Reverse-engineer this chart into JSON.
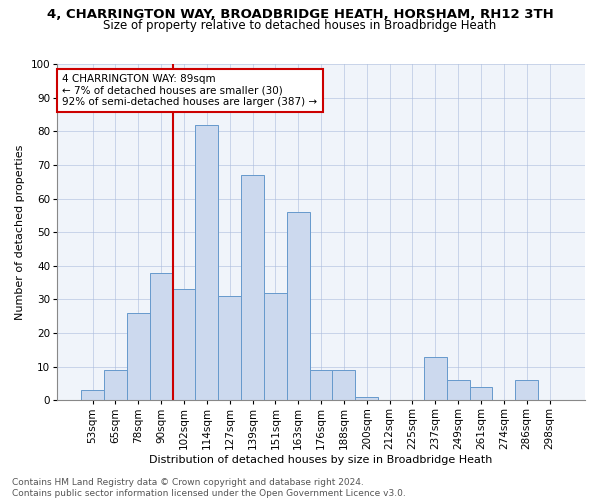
{
  "title": "4, CHARRINGTON WAY, BROADBRIDGE HEATH, HORSHAM, RH12 3TH",
  "subtitle": "Size of property relative to detached houses in Broadbridge Heath",
  "xlabel": "Distribution of detached houses by size in Broadbridge Heath",
  "ylabel": "Number of detached properties",
  "bar_labels": [
    "53sqm",
    "65sqm",
    "78sqm",
    "90sqm",
    "102sqm",
    "114sqm",
    "127sqm",
    "139sqm",
    "151sqm",
    "163sqm",
    "176sqm",
    "188sqm",
    "200sqm",
    "212sqm",
    "225sqm",
    "237sqm",
    "249sqm",
    "261sqm",
    "274sqm",
    "286sqm",
    "298sqm"
  ],
  "bar_values": [
    3,
    9,
    26,
    38,
    33,
    82,
    31,
    67,
    32,
    56,
    9,
    9,
    1,
    0,
    0,
    13,
    6,
    4,
    0,
    6,
    0
  ],
  "bar_color": "#ccd9ee",
  "bar_edge_color": "#6699cc",
  "vline_x_index": 3.5,
  "vline_color": "#cc0000",
  "annotation_text": "4 CHARRINGTON WAY: 89sqm\n← 7% of detached houses are smaller (30)\n92% of semi-detached houses are larger (387) →",
  "annotation_box_edge": "#cc0000",
  "ylim": [
    0,
    100
  ],
  "yticks": [
    0,
    10,
    20,
    30,
    40,
    50,
    60,
    70,
    80,
    90,
    100
  ],
  "footer1": "Contains HM Land Registry data © Crown copyright and database right 2024.",
  "footer2": "Contains public sector information licensed under the Open Government Licence v3.0.",
  "title_fontsize": 9.5,
  "subtitle_fontsize": 8.5,
  "xlabel_fontsize": 8,
  "ylabel_fontsize": 8,
  "tick_fontsize": 7.5,
  "annotation_fontsize": 7.5,
  "footer_fontsize": 6.5,
  "bg_color": "#f0f4fa"
}
